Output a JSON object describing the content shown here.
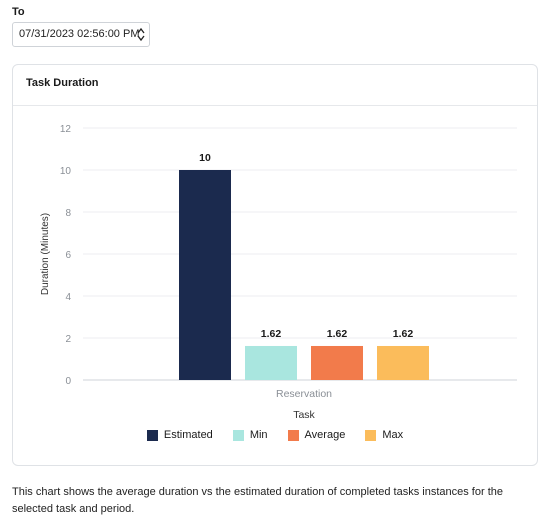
{
  "filter": {
    "to_label": "To",
    "to_value": "07/31/2023 02:56:00 PM"
  },
  "card": {
    "title": "Task Duration"
  },
  "chart_data": {
    "type": "bar",
    "categories": [
      "Reservation"
    ],
    "series": [
      {
        "name": "Estimated",
        "values": [
          10
        ],
        "color": "#1b2a4e"
      },
      {
        "name": "Min",
        "values": [
          1.62
        ],
        "color": "#a9e6df"
      },
      {
        "name": "Average",
        "values": [
          1.62
        ],
        "color": "#f27b4b"
      },
      {
        "name": "Max",
        "values": [
          1.62
        ],
        "color": "#fbbc5b"
      }
    ],
    "data_labels": [
      "10",
      "1.62",
      "1.62",
      "1.62"
    ],
    "y_ticks": [
      "0",
      "2",
      "4",
      "6",
      "8",
      "10",
      "12"
    ],
    "xlabel": "Task",
    "ylabel": "Duration (Minutes)",
    "ylim": [
      0,
      12
    ],
    "grid": true,
    "legend_position": "bottom"
  },
  "description": "This chart shows the average duration vs the estimated duration of completed tasks instances for the selected task and period."
}
